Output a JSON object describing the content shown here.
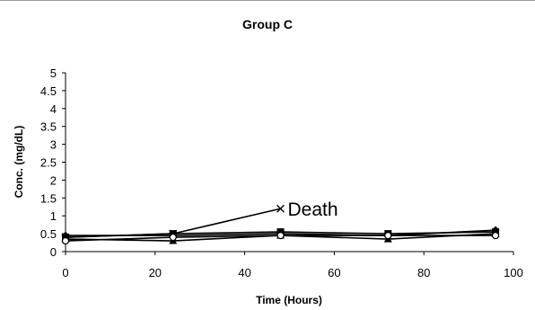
{
  "chart_data": {
    "type": "line",
    "title": "Group C",
    "xlabel": "Time (Hours)",
    "ylabel": "Conc. (mg/dL)",
    "xlim": [
      0,
      100
    ],
    "ylim": [
      0,
      5
    ],
    "x_ticks": [
      "0",
      "20",
      "40",
      "60",
      "80",
      "100"
    ],
    "y_ticks": [
      "0",
      "0.5",
      "1",
      "1.5",
      "2",
      "2.5",
      "3",
      "3.5",
      "4",
      "4.5",
      "5"
    ],
    "grid": false,
    "legend": "none",
    "series": [
      {
        "marker": "diamond",
        "x": [
          0,
          24,
          48,
          72,
          96
        ],
        "y": [
          0.45,
          0.45,
          0.5,
          0.45,
          0.6
        ]
      },
      {
        "marker": "square",
        "x": [
          0,
          24,
          48,
          72,
          96
        ],
        "y": [
          0.4,
          0.5,
          0.55,
          0.5,
          0.55
        ]
      },
      {
        "marker": "triangle",
        "x": [
          0,
          24,
          48,
          72,
          96
        ],
        "y": [
          0.35,
          0.3,
          0.45,
          0.35,
          0.5
        ]
      },
      {
        "marker": "x",
        "x": [
          0,
          24,
          48
        ],
        "y": [
          0.4,
          0.5,
          1.2
        ]
      },
      {
        "marker": "circle",
        "x": [
          0,
          24,
          48,
          72,
          96
        ],
        "y": [
          0.3,
          0.4,
          0.45,
          0.45,
          0.45
        ]
      }
    ],
    "annotations": [
      {
        "text": "Death",
        "x": 48,
        "y": 1.2
      }
    ]
  }
}
